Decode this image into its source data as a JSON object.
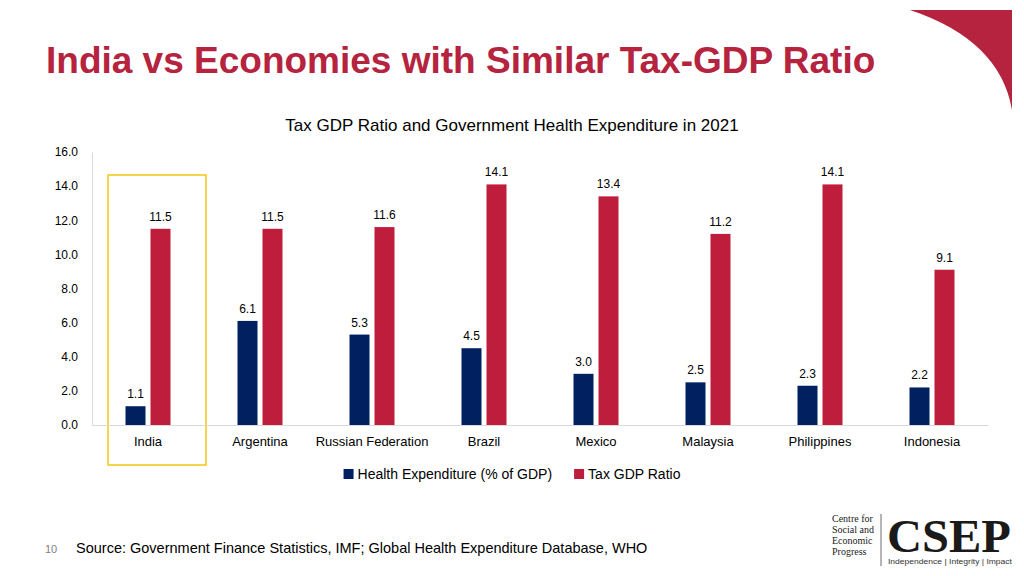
{
  "page": {
    "heading": "India vs Economies with Similar Tax-GDP Ratio",
    "source": "Source: Government Finance Statistics, IMF; Global Health Expenditure Database, WHO",
    "page_number": 10,
    "logo": {
      "lines": [
        "Centre for",
        "Social and",
        "Economic",
        "Progress"
      ],
      "name": "CSEP",
      "tagline": "Independence | Integrity | Impact"
    }
  },
  "chart_data": {
    "type": "bar",
    "title": "Tax GDP Ratio and Government Health Expenditure in 2021",
    "categories": [
      "India",
      "Argentina",
      "Russian Federation",
      "Brazil",
      "Mexico",
      "Malaysia",
      "Philippines",
      "Indonesia"
    ],
    "series": [
      {
        "name": "Health Expenditure (% of GDP)",
        "color": "#002060",
        "values": [
          1.1,
          6.1,
          5.3,
          4.5,
          3.0,
          2.5,
          2.3,
          2.2
        ],
        "value_labels": [
          "1.1",
          "6.1",
          "5.3",
          "4.5",
          "3.0",
          "2.5",
          "2.3",
          "2.2"
        ]
      },
      {
        "name": "Tax GDP Ratio",
        "color": "#be1e3c",
        "values": [
          11.5,
          11.5,
          11.6,
          14.1,
          13.4,
          11.2,
          14.1,
          9.1
        ],
        "value_labels": [
          "11.5",
          "11.5",
          "11.6",
          "14.1",
          "13.4",
          "11.2",
          "14.1",
          "9.1"
        ]
      }
    ],
    "ylim": [
      0,
      16
    ],
    "yticks": [
      {
        "value": 0,
        "label": "0.0"
      },
      {
        "value": 2,
        "label": "2.0"
      },
      {
        "value": 4,
        "label": "4.0"
      },
      {
        "value": 6,
        "label": "6.0"
      },
      {
        "value": 8,
        "label": "8.0"
      },
      {
        "value": 10,
        "label": "10.0"
      },
      {
        "value": 12,
        "label": "12.0"
      },
      {
        "value": 14,
        "label": "14.0"
      },
      {
        "value": 16,
        "label": "16.0"
      }
    ],
    "grid": false,
    "legend": "bottom",
    "data_labels": true
  }
}
